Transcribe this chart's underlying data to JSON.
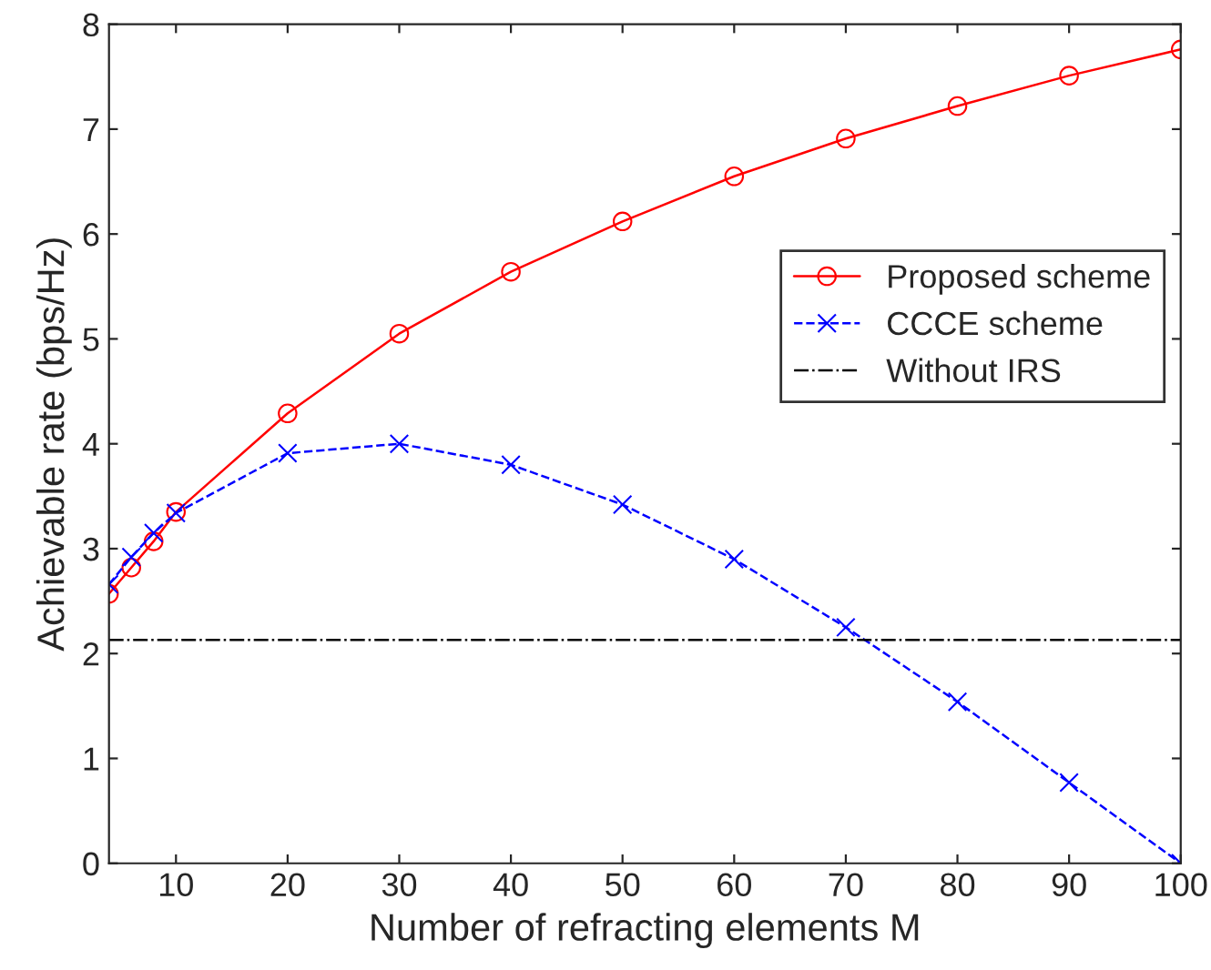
{
  "chart_data": {
    "type": "line",
    "xlabel": "Number of refracting elements M",
    "ylabel": "Achievable rate (bps/Hz)",
    "x": [
      4,
      6,
      8,
      10,
      20,
      30,
      40,
      50,
      60,
      70,
      80,
      90,
      100
    ],
    "series": [
      {
        "name": "Proposed scheme",
        "color": "#ff0000",
        "marker": "circle",
        "line_style": "solid",
        "values": [
          2.57,
          2.82,
          3.07,
          3.35,
          4.29,
          5.05,
          5.64,
          6.12,
          6.55,
          6.91,
          7.22,
          7.51,
          7.76
        ]
      },
      {
        "name": "CCCE scheme",
        "color": "#0000ff",
        "marker": "cross",
        "line_style": "dashed",
        "values": [
          2.66,
          2.92,
          3.15,
          3.34,
          3.91,
          4.0,
          3.8,
          3.42,
          2.9,
          2.25,
          1.54,
          0.77,
          0.0
        ]
      },
      {
        "name": "Without IRS",
        "color": "#000000",
        "marker": "none",
        "line_style": "dashdot",
        "values": [
          2.13,
          2.13,
          2.13,
          2.13,
          2.13,
          2.13,
          2.13,
          2.13,
          2.13,
          2.13,
          2.13,
          2.13,
          2.13
        ]
      }
    ],
    "xlim": [
      4,
      100
    ],
    "xticks": [
      10,
      20,
      30,
      40,
      50,
      60,
      70,
      80,
      90,
      100
    ],
    "ylim": [
      0,
      8
    ],
    "yticks": [
      0,
      1,
      2,
      3,
      4,
      5,
      6,
      7,
      8
    ],
    "grid": false,
    "legend": "right"
  }
}
